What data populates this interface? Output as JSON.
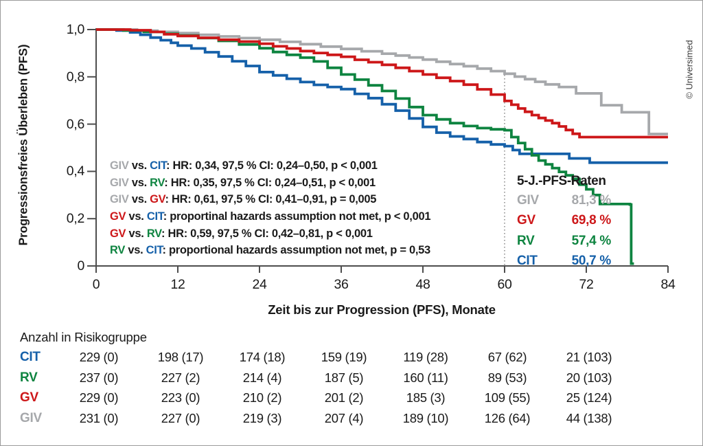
{
  "copyright": "© Universimed",
  "chart": {
    "y_axis_title": "Progressionsfreies Überleben (PFS)",
    "x_axis_title": "Zeit bis zur Progression (PFS), Monate"
  },
  "colors": {
    "GIV": "#a6a8ab",
    "GV": "#cd1719",
    "RV": "#0e8440",
    "CIT": "#1560a9",
    "text": "#1a1a1a",
    "axis": "#4d4d4d",
    "reference": "#8c8c8c"
  },
  "annotations": [
    {
      "segments": [
        {
          "t": "GIV",
          "c": "GIV"
        },
        {
          "t": " vs. ",
          "c": "text"
        },
        {
          "t": "CIT",
          "c": "CIT"
        },
        {
          "t": ": HR: 0,34, 97,5 % CI: 0,24–0,50, p < 0,001",
          "c": "text"
        }
      ]
    },
    {
      "segments": [
        {
          "t": "GIV",
          "c": "GIV"
        },
        {
          "t": " vs. ",
          "c": "text"
        },
        {
          "t": "RV",
          "c": "RV"
        },
        {
          "t": ": HR: 0,35, 97,5 % CI: 0,24–0,51, p < 0,001",
          "c": "text"
        }
      ]
    },
    {
      "segments": [
        {
          "t": "GIV",
          "c": "GIV"
        },
        {
          "t": " vs. ",
          "c": "text"
        },
        {
          "t": "GV",
          "c": "GV"
        },
        {
          "t": ": HR: 0,61, 97,5 % CI: 0,41–0,91, p = 0,005",
          "c": "text"
        }
      ]
    },
    {
      "segments": [
        {
          "t": "GV",
          "c": "GV"
        },
        {
          "t": " vs. ",
          "c": "text"
        },
        {
          "t": "CIT",
          "c": "CIT"
        },
        {
          "t": ": proportinal hazards assumption not met, p < 0,001",
          "c": "text"
        }
      ]
    },
    {
      "segments": [
        {
          "t": "GV",
          "c": "GV"
        },
        {
          "t": " vs. ",
          "c": "text"
        },
        {
          "t": "RV",
          "c": "RV"
        },
        {
          "t": ": HR: 0,59, 97,5 % CI: 0,42–0,81, p < 0,001",
          "c": "text"
        }
      ]
    },
    {
      "segments": [
        {
          "t": "RV",
          "c": "RV"
        },
        {
          "t": " vs. ",
          "c": "text"
        },
        {
          "t": "CIT",
          "c": "CIT"
        },
        {
          "t": ": proportional hazards assumption not met, p = 0,53",
          "c": "text"
        }
      ]
    }
  ],
  "legend": {
    "title": "5-J.-PFS-Raten",
    "rows": [
      {
        "label": "GIV",
        "value": "81,3 %",
        "c": "GIV"
      },
      {
        "label": "GV",
        "value": "69,8 %",
        "c": "GV"
      },
      {
        "label": "RV",
        "value": "57,4 %",
        "c": "RV"
      },
      {
        "label": "CIT",
        "value": "50,7 %",
        "c": "CIT"
      }
    ]
  },
  "risk_table": {
    "title": "Anzahl in Risikogruppe",
    "columns_at_months": [
      0,
      12,
      24,
      36,
      48,
      60,
      72
    ],
    "rows": [
      {
        "label": "CIT",
        "c": "CIT",
        "values": [
          "229 (0)",
          "198 (17)",
          "174 (18)",
          "159 (19)",
          "119 (28)",
          "67 (62)",
          "21 (103)"
        ]
      },
      {
        "label": "RV",
        "c": "RV",
        "values": [
          "237 (0)",
          "227 (2)",
          "214 (4)",
          "187 (5)",
          "160 (11)",
          "89 (53)",
          "20 (103)"
        ]
      },
      {
        "label": "GV",
        "c": "GV",
        "values": [
          "229 (0)",
          "223 (0)",
          "210 (2)",
          "201 (2)",
          "185 (3)",
          "109 (55)",
          "25 (124)"
        ]
      },
      {
        "label": "GIV",
        "c": "GIV",
        "values": [
          "231 (0)",
          "227 (0)",
          "219 (3)",
          "207 (4)",
          "189 (10)",
          "126 (64)",
          "44 (138)"
        ]
      }
    ]
  },
  "chart_data": {
    "type": "line",
    "step": true,
    "title": "",
    "xlabel": "Zeit bis zur Progression (PFS), Monate",
    "ylabel": "Progressionsfreies Überleben (PFS)",
    "xlim": [
      0,
      84
    ],
    "ylim": [
      0,
      1.0
    ],
    "grid": false,
    "legend_position": "lower right",
    "reference_line_x": 60,
    "x_ticks": [
      {
        "m": 0,
        "label": "0"
      },
      {
        "m": 12,
        "label": "12"
      },
      {
        "m": 24,
        "label": "24"
      },
      {
        "m": 36,
        "label": "36"
      },
      {
        "m": 48,
        "label": "48"
      },
      {
        "m": 60,
        "label": "60"
      },
      {
        "m": 72,
        "label": "72"
      },
      {
        "m": 84,
        "label": "84"
      }
    ],
    "y_ticks": [
      {
        "v": 0,
        "label": "0"
      },
      {
        "v": 0.2,
        "label": "0,2"
      },
      {
        "v": 0.4,
        "label": "0,4"
      },
      {
        "v": 0.6,
        "label": "0,6"
      },
      {
        "v": 0.8,
        "label": "0,8"
      },
      {
        "v": 1.0,
        "label": "1,0"
      }
    ],
    "series": [
      {
        "name": "GIV",
        "c": "GIV",
        "five_year_rate": 0.813,
        "points": [
          [
            0,
            1.0
          ],
          [
            6,
            0.995
          ],
          [
            9,
            0.99
          ],
          [
            12,
            0.985
          ],
          [
            15,
            0.978
          ],
          [
            18,
            0.971
          ],
          [
            21,
            0.964
          ],
          [
            24,
            0.957
          ],
          [
            27,
            0.948
          ],
          [
            30,
            0.938
          ],
          [
            33,
            0.928
          ],
          [
            36,
            0.918
          ],
          [
            39,
            0.908
          ],
          [
            42,
            0.898
          ],
          [
            44,
            0.89
          ],
          [
            46,
            0.882
          ],
          [
            48,
            0.873
          ],
          [
            50,
            0.864
          ],
          [
            52,
            0.854
          ],
          [
            54,
            0.845
          ],
          [
            56,
            0.835
          ],
          [
            58,
            0.824
          ],
          [
            60,
            0.813
          ],
          [
            61.5,
            0.801
          ],
          [
            63,
            0.79
          ],
          [
            64.5,
            0.779
          ],
          [
            66,
            0.768
          ],
          [
            68,
            0.757
          ],
          [
            70.5,
            0.73
          ],
          [
            74.2,
            0.68
          ],
          [
            77.2,
            0.65
          ],
          [
            81.2,
            0.558
          ],
          [
            84,
            0.558
          ]
        ]
      },
      {
        "name": "CIT",
        "c": "CIT",
        "five_year_rate": 0.507,
        "points": [
          [
            0,
            1.0
          ],
          [
            3,
            0.996
          ],
          [
            5,
            0.988
          ],
          [
            6.5,
            0.978
          ],
          [
            8,
            0.966
          ],
          [
            9.5,
            0.955
          ],
          [
            11,
            0.944
          ],
          [
            12,
            0.932
          ],
          [
            14,
            0.92
          ],
          [
            16,
            0.904
          ],
          [
            18,
            0.886
          ],
          [
            20,
            0.866
          ],
          [
            22,
            0.846
          ],
          [
            24,
            0.82
          ],
          [
            26,
            0.806
          ],
          [
            28,
            0.792
          ],
          [
            30,
            0.778
          ],
          [
            32,
            0.766
          ],
          [
            34,
            0.757
          ],
          [
            36,
            0.748
          ],
          [
            38,
            0.728
          ],
          [
            40,
            0.71
          ],
          [
            42,
            0.684
          ],
          [
            44,
            0.657
          ],
          [
            46,
            0.624
          ],
          [
            48,
            0.588
          ],
          [
            50,
            0.564
          ],
          [
            52,
            0.548
          ],
          [
            54,
            0.537
          ],
          [
            56,
            0.524
          ],
          [
            58,
            0.514
          ],
          [
            60,
            0.507
          ],
          [
            61.2,
            0.49
          ],
          [
            62.2,
            0.474
          ],
          [
            69.5,
            0.455
          ],
          [
            72.5,
            0.437
          ],
          [
            84,
            0.437
          ]
        ]
      },
      {
        "name": "RV",
        "c": "RV",
        "five_year_rate": 0.574,
        "points": [
          [
            0,
            1.0
          ],
          [
            4,
            0.996
          ],
          [
            7,
            0.99
          ],
          [
            10,
            0.982
          ],
          [
            12,
            0.975
          ],
          [
            15,
            0.964
          ],
          [
            18,
            0.952
          ],
          [
            21,
            0.937
          ],
          [
            24,
            0.921
          ],
          [
            26,
            0.905
          ],
          [
            28,
            0.893
          ],
          [
            30,
            0.881
          ],
          [
            32,
            0.865
          ],
          [
            34,
            0.838
          ],
          [
            36,
            0.81
          ],
          [
            38,
            0.788
          ],
          [
            40,
            0.764
          ],
          [
            42,
            0.74
          ],
          [
            44,
            0.708
          ],
          [
            46,
            0.672
          ],
          [
            48,
            0.638
          ],
          [
            50,
            0.62
          ],
          [
            52,
            0.604
          ],
          [
            54,
            0.592
          ],
          [
            56,
            0.583
          ],
          [
            58,
            0.578
          ],
          [
            60,
            0.574
          ],
          [
            61,
            0.545
          ],
          [
            62,
            0.52
          ],
          [
            63,
            0.494
          ],
          [
            64,
            0.468
          ],
          [
            65,
            0.446
          ],
          [
            66,
            0.43
          ],
          [
            67,
            0.414
          ],
          [
            68,
            0.398
          ],
          [
            69,
            0.383
          ],
          [
            70,
            0.368
          ],
          [
            71,
            0.344
          ],
          [
            72,
            0.324
          ],
          [
            73,
            0.3
          ],
          [
            74,
            0.262
          ],
          [
            78.4,
            0.26
          ],
          [
            78.6,
            0.01
          ],
          [
            79,
            0.01
          ]
        ]
      },
      {
        "name": "GV",
        "c": "GV",
        "five_year_rate": 0.698,
        "points": [
          [
            0,
            1.0
          ],
          [
            5,
            0.997
          ],
          [
            8,
            0.99
          ],
          [
            10,
            0.98
          ],
          [
            12,
            0.973
          ],
          [
            15,
            0.965
          ],
          [
            18,
            0.957
          ],
          [
            21,
            0.949
          ],
          [
            24,
            0.94
          ],
          [
            26,
            0.929
          ],
          [
            28,
            0.92
          ],
          [
            30,
            0.909
          ],
          [
            32,
            0.901
          ],
          [
            34,
            0.893
          ],
          [
            36,
            0.885
          ],
          [
            38,
            0.872
          ],
          [
            40,
            0.862
          ],
          [
            42,
            0.851
          ],
          [
            44,
            0.838
          ],
          [
            46,
            0.824
          ],
          [
            48,
            0.81
          ],
          [
            50,
            0.796
          ],
          [
            52,
            0.782
          ],
          [
            54,
            0.767
          ],
          [
            56,
            0.747
          ],
          [
            58,
            0.725
          ],
          [
            60,
            0.698
          ],
          [
            61,
            0.682
          ],
          [
            62,
            0.666
          ],
          [
            63,
            0.652
          ],
          [
            64,
            0.638
          ],
          [
            65,
            0.626
          ],
          [
            66,
            0.615
          ],
          [
            67,
            0.604
          ],
          [
            68,
            0.59
          ],
          [
            69,
            0.575
          ],
          [
            70,
            0.559
          ],
          [
            71,
            0.545
          ],
          [
            84,
            0.545
          ]
        ]
      }
    ]
  }
}
